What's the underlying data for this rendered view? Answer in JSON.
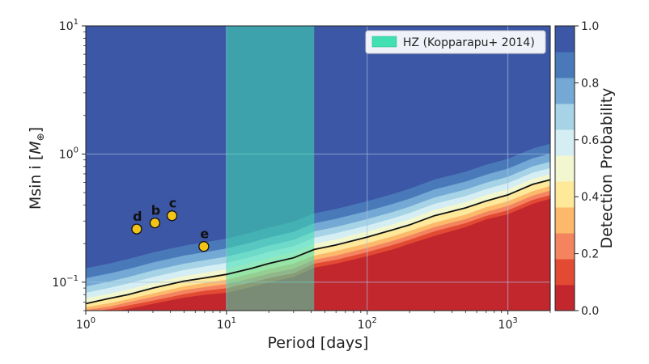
{
  "chart_data": {
    "type": "area",
    "xlabel": "Period [days]",
    "ylabel_text": "Msin i [",
    "ylabel_unit": "M",
    "ylabel_sub": "⊕",
    "ylabel_close": "]",
    "x_scale": "log",
    "y_scale": "log",
    "xlim": [
      1,
      2000
    ],
    "ylim": [
      0.06,
      10
    ],
    "x_ticks": [
      {
        "value": 1,
        "base": "10",
        "exp": "0"
      },
      {
        "value": 10,
        "base": "10",
        "exp": "1"
      },
      {
        "value": 100,
        "base": "10",
        "exp": "2"
      },
      {
        "value": 1000,
        "base": "10",
        "exp": "3"
      }
    ],
    "y_ticks": [
      {
        "value": 0.1,
        "base": "10",
        "exp": "−1"
      },
      {
        "value": 1,
        "base": "10",
        "exp": "0"
      },
      {
        "value": 10,
        "base": "10",
        "exp": "1"
      }
    ],
    "grid": true,
    "period_grid": [
      1,
      1.5,
      2,
      3,
      5,
      7,
      10,
      15,
      20,
      30,
      42,
      60,
      100,
      150,
      200,
      300,
      500,
      700,
      1000,
      1500,
      2000
    ],
    "prob_contours": [
      {
        "level": 0.1,
        "mass": [
          0.056,
          0.059,
          0.062,
          0.068,
          0.076,
          0.08,
          0.083,
          0.092,
          0.1,
          0.11,
          0.13,
          0.14,
          0.16,
          0.18,
          0.2,
          0.23,
          0.27,
          0.31,
          0.34,
          0.41,
          0.45
        ]
      },
      {
        "level": 0.2,
        "mass": [
          0.058,
          0.062,
          0.066,
          0.072,
          0.081,
          0.086,
          0.09,
          0.1,
          0.108,
          0.118,
          0.14,
          0.15,
          0.172,
          0.195,
          0.215,
          0.25,
          0.29,
          0.33,
          0.365,
          0.44,
          0.48
        ]
      },
      {
        "level": 0.3,
        "mass": [
          0.061,
          0.065,
          0.07,
          0.077,
          0.087,
          0.092,
          0.097,
          0.108,
          0.117,
          0.128,
          0.15,
          0.162,
          0.186,
          0.21,
          0.232,
          0.27,
          0.312,
          0.355,
          0.395,
          0.475,
          0.52
        ]
      },
      {
        "level": 0.4,
        "mass": [
          0.064,
          0.069,
          0.074,
          0.082,
          0.093,
          0.099,
          0.105,
          0.117,
          0.127,
          0.14,
          0.162,
          0.176,
          0.202,
          0.228,
          0.252,
          0.292,
          0.338,
          0.386,
          0.43,
          0.515,
          0.565
        ]
      },
      {
        "level": 0.5,
        "mass": [
          0.068,
          0.075,
          0.08,
          0.09,
          0.102,
          0.108,
          0.115,
          0.128,
          0.14,
          0.155,
          0.18,
          0.195,
          0.225,
          0.255,
          0.28,
          0.33,
          0.38,
          0.43,
          0.48,
          0.58,
          0.63
        ]
      },
      {
        "level": 0.6,
        "mass": [
          0.075,
          0.082,
          0.088,
          0.099,
          0.112,
          0.119,
          0.127,
          0.142,
          0.155,
          0.172,
          0.2,
          0.217,
          0.25,
          0.283,
          0.312,
          0.368,
          0.423,
          0.48,
          0.535,
          0.645,
          0.7
        ]
      },
      {
        "level": 0.7,
        "mass": [
          0.083,
          0.091,
          0.098,
          0.11,
          0.125,
          0.133,
          0.142,
          0.158,
          0.173,
          0.192,
          0.223,
          0.242,
          0.278,
          0.315,
          0.348,
          0.41,
          0.472,
          0.535,
          0.596,
          0.718,
          0.78
        ]
      },
      {
        "level": 0.8,
        "mass": [
          0.093,
          0.102,
          0.11,
          0.124,
          0.14,
          0.149,
          0.159,
          0.177,
          0.194,
          0.215,
          0.25,
          0.271,
          0.312,
          0.353,
          0.39,
          0.46,
          0.53,
          0.6,
          0.668,
          0.805,
          0.875
        ]
      },
      {
        "level": 0.9,
        "mass": [
          0.108,
          0.118,
          0.127,
          0.143,
          0.162,
          0.172,
          0.184,
          0.205,
          0.224,
          0.248,
          0.289,
          0.313,
          0.36,
          0.408,
          0.45,
          0.531,
          0.612,
          0.693,
          0.772,
          0.93,
          1.01
        ]
      },
      {
        "level": 1.0,
        "mass": [
          0.128,
          0.14,
          0.151,
          0.17,
          0.192,
          0.204,
          0.218,
          0.243,
          0.266,
          0.295,
          0.343,
          0.371,
          0.427,
          0.484,
          0.534,
          0.63,
          0.726,
          0.822,
          0.916,
          1.1,
          1.2
        ]
      }
    ],
    "fifty_percent_line": {
      "period": [
        1,
        1.5,
        2,
        3,
        5,
        7,
        10,
        15,
        20,
        30,
        42,
        60,
        100,
        150,
        200,
        300,
        500,
        700,
        1000,
        1500,
        2000
      ],
      "mass": [
        0.068,
        0.075,
        0.08,
        0.09,
        0.102,
        0.108,
        0.115,
        0.128,
        0.14,
        0.155,
        0.18,
        0.195,
        0.225,
        0.255,
        0.28,
        0.33,
        0.38,
        0.43,
        0.48,
        0.58,
        0.63
      ]
    },
    "hz_band": {
      "period_min": 10,
      "period_max": 42,
      "label": "HZ (Kopparapu+ 2014)",
      "color": "#40e0b0"
    },
    "planets": [
      {
        "label": "d",
        "period": 2.3,
        "mass": 0.26
      },
      {
        "label": "b",
        "period": 3.1,
        "mass": 0.29
      },
      {
        "label": "c",
        "period": 4.1,
        "mass": 0.33
      },
      {
        "label": "e",
        "period": 6.9,
        "mass": 0.19
      }
    ],
    "colorbar": {
      "label": "Detection Probability",
      "ticks": [
        "0.0",
        "0.2",
        "0.4",
        "0.6",
        "0.8",
        "1.0"
      ],
      "colors": [
        "#c1272d",
        "#e34a33",
        "#f4845f",
        "#fdb96b",
        "#fee99a",
        "#f2f7cf",
        "#d5eef4",
        "#a6d3e6",
        "#73a9d4",
        "#4a79b9",
        "#3b57a6"
      ]
    },
    "legend_placement": "top-right"
  }
}
